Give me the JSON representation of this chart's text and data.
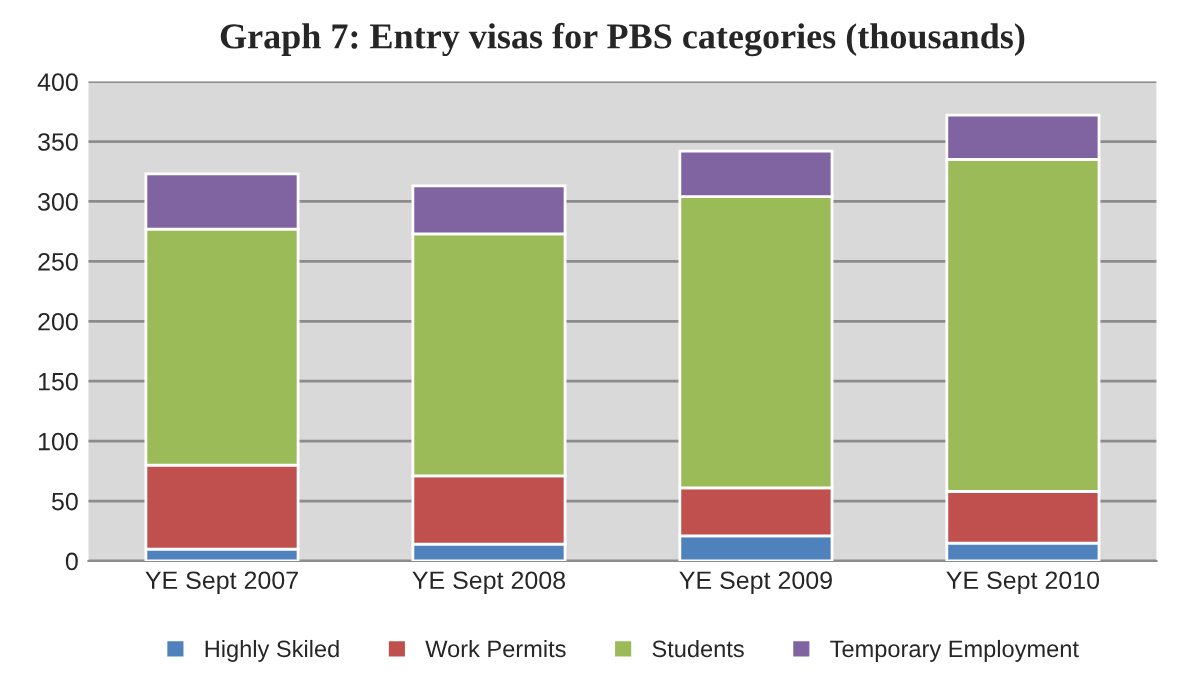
{
  "chart_data": {
    "type": "bar",
    "title": "Graph 7: Entry visas for PBS categories (thousands)",
    "stacked": true,
    "categories": [
      "YE Sept 2007",
      "YE Sept 2008",
      "YE Sept 2009",
      "YE Sept 2010"
    ],
    "series": [
      {
        "name": "Highly Skiled",
        "color": "#4f81bd",
        "values": [
          10,
          14,
          21,
          15
        ]
      },
      {
        "name": "Work Permits",
        "color": "#c0504d",
        "values": [
          70,
          57,
          40,
          43
        ]
      },
      {
        "name": "Students",
        "color": "#9bbb59",
        "values": [
          197,
          202,
          243,
          277
        ]
      },
      {
        "name": "Temporary Employment",
        "color": "#8064a2",
        "values": [
          46,
          40,
          38,
          37
        ]
      }
    ],
    "ylim": [
      0,
      400
    ],
    "yticks": [
      0,
      50,
      100,
      150,
      200,
      250,
      300,
      350,
      400
    ],
    "grid": "y",
    "legend": "bottom"
  }
}
